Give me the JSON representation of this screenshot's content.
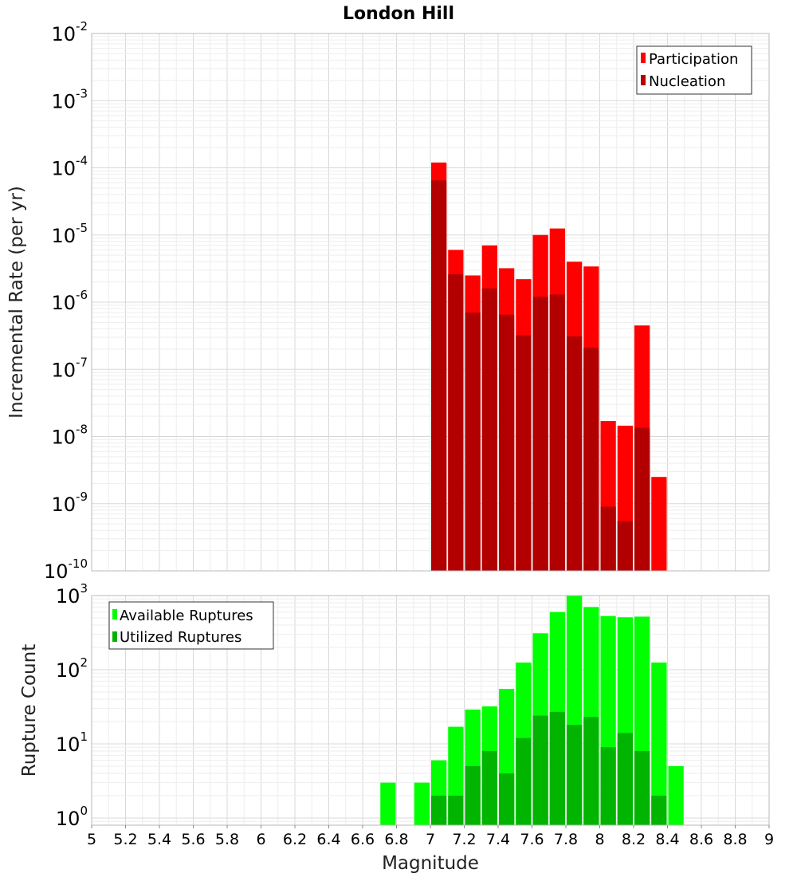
{
  "chart_data": [
    {
      "type": "bar",
      "title": "London Hill",
      "xlabel": "",
      "ylabel": "Incremental Rate (per yr)",
      "y_scale": "log",
      "ylim": [
        1e-10,
        0.01
      ],
      "xlim": [
        5,
        9
      ],
      "grid": true,
      "legend_position": "top-right",
      "bar_width": 0.1,
      "y_ticks": [
        {
          "base": "10",
          "exp": "-10",
          "value": 1e-10
        },
        {
          "base": "10",
          "exp": "-9",
          "value": 1e-09
        },
        {
          "base": "10",
          "exp": "-8",
          "value": 1e-08
        },
        {
          "base": "10",
          "exp": "-7",
          "value": 1e-07
        },
        {
          "base": "10",
          "exp": "-6",
          "value": 1e-06
        },
        {
          "base": "10",
          "exp": "-5",
          "value": 1e-05
        },
        {
          "base": "10",
          "exp": "-4",
          "value": 0.0001
        },
        {
          "base": "10",
          "exp": "-3",
          "value": 0.001
        },
        {
          "base": "10",
          "exp": "-2",
          "value": 0.01
        }
      ],
      "series": [
        {
          "name": "Participation",
          "color": "#ff0000",
          "x": [
            7.05,
            7.15,
            7.25,
            7.35,
            7.45,
            7.55,
            7.65,
            7.75,
            7.85,
            7.95,
            8.05,
            8.15,
            8.25,
            8.35
          ],
          "values": [
            0.00012,
            6e-06,
            2.5e-06,
            7e-06,
            3.2e-06,
            2.2e-06,
            1e-05,
            1.25e-05,
            4e-06,
            3.4e-06,
            1.7e-08,
            1.45e-08,
            4.5e-07,
            2.5e-09
          ]
        },
        {
          "name": "Nucleation",
          "color": "#b20000",
          "x": [
            7.05,
            7.15,
            7.25,
            7.35,
            7.45,
            7.55,
            7.65,
            7.75,
            7.85,
            7.95,
            8.05,
            8.15,
            8.25
          ],
          "values": [
            6.5e-05,
            2.6e-06,
            7e-07,
            1.6e-06,
            6.5e-07,
            3.2e-07,
            1.2e-06,
            1.3e-06,
            3.1e-07,
            2.1e-07,
            9e-10,
            5.5e-10,
            1.35e-08
          ]
        }
      ]
    },
    {
      "type": "bar",
      "title": "",
      "xlabel": "Magnitude",
      "ylabel": "Rupture Count",
      "y_scale": "log",
      "ylim": [
        0.8,
        1000
      ],
      "xlim": [
        5,
        9
      ],
      "grid": true,
      "legend_position": "top-left",
      "bar_width": 0.1,
      "y_ticks": [
        {
          "base": "10",
          "exp": "0",
          "value": 1
        },
        {
          "base": "10",
          "exp": "1",
          "value": 10
        },
        {
          "base": "10",
          "exp": "2",
          "value": 100
        },
        {
          "base": "10",
          "exp": "3",
          "value": 1000
        }
      ],
      "x_ticks": [
        "5",
        "5.2",
        "5.4",
        "5.6",
        "5.8",
        "6",
        "6.2",
        "6.4",
        "6.6",
        "6.8",
        "7",
        "7.2",
        "7.4",
        "7.6",
        "7.8",
        "8",
        "8.2",
        "8.4",
        "8.6",
        "8.8",
        "9"
      ],
      "series": [
        {
          "name": "Available Ruptures",
          "color": "#00ff00",
          "x": [
            6.75,
            6.95,
            7.05,
            7.15,
            7.25,
            7.35,
            7.45,
            7.55,
            7.65,
            7.75,
            7.85,
            7.95,
            8.05,
            8.15,
            8.25,
            8.35,
            8.45
          ],
          "values": [
            3,
            3,
            6,
            17,
            29,
            32,
            55,
            125,
            310,
            600,
            1000,
            700,
            530,
            510,
            520,
            125,
            5
          ]
        },
        {
          "name": "Utilized Ruptures",
          "color": "#00b400",
          "x": [
            7.05,
            7.15,
            7.25,
            7.35,
            7.45,
            7.55,
            7.65,
            7.75,
            7.85,
            7.95,
            8.05,
            8.15,
            8.25,
            8.35
          ],
          "values": [
            2,
            2,
            5,
            8,
            4,
            12,
            24,
            27,
            18,
            23,
            9,
            14,
            8,
            2
          ]
        }
      ]
    }
  ]
}
